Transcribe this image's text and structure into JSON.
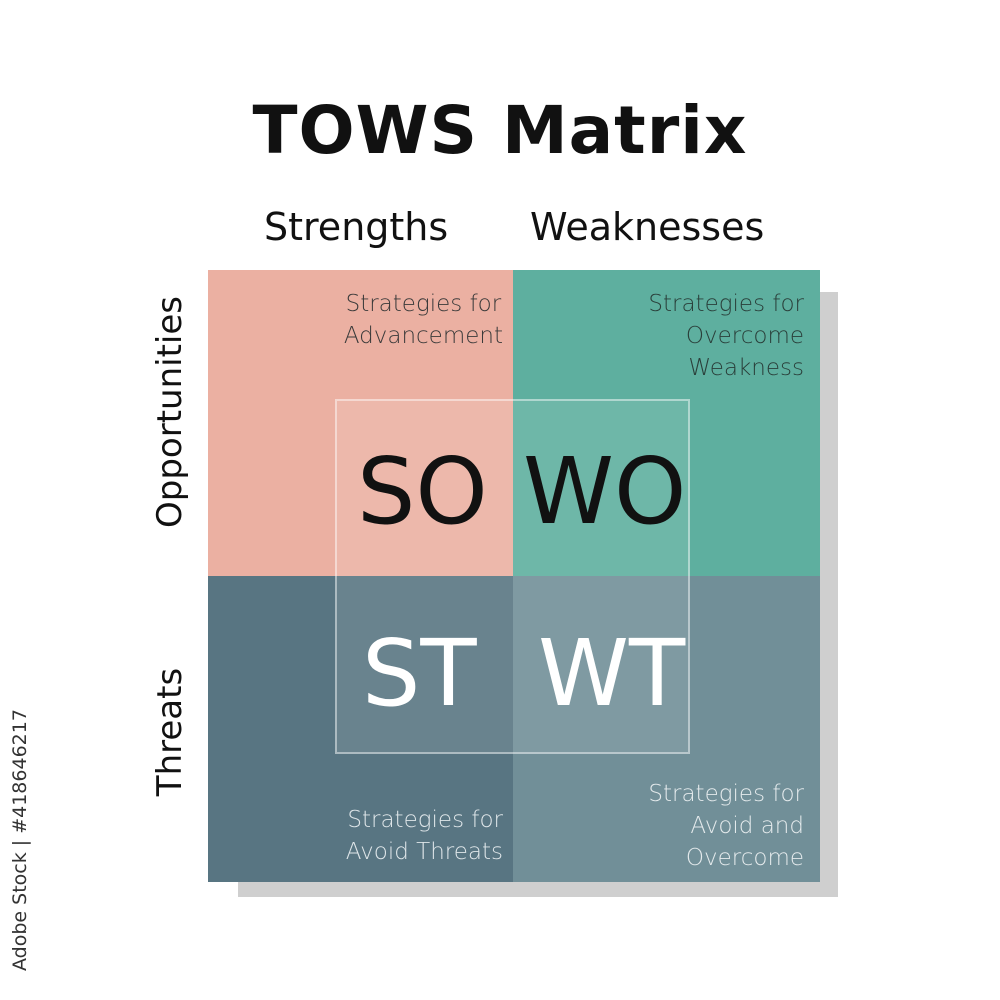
{
  "title": "TOWS Matrix",
  "columns": [
    "Strengths",
    "Weaknesses"
  ],
  "rows": [
    "Opportunities",
    "Threats"
  ],
  "quadrants": [
    {
      "code": "SO",
      "lines": [
        "Strategies for",
        "Advancement"
      ],
      "color": "#EBB0A2"
    },
    {
      "code": "WO",
      "lines": [
        "Strategies for",
        "Overcome",
        "Weakness"
      ],
      "color": "#5EAF9F"
    },
    {
      "code": "ST",
      "lines": [
        "Strategies for",
        "Avoid Threats"
      ],
      "color": "#587582"
    },
    {
      "code": "WT",
      "lines": [
        "Strategies for",
        "Avoid and",
        "Overcome"
      ],
      "color": "#718F98"
    }
  ],
  "watermark": "Adobe Stock | #418646217"
}
